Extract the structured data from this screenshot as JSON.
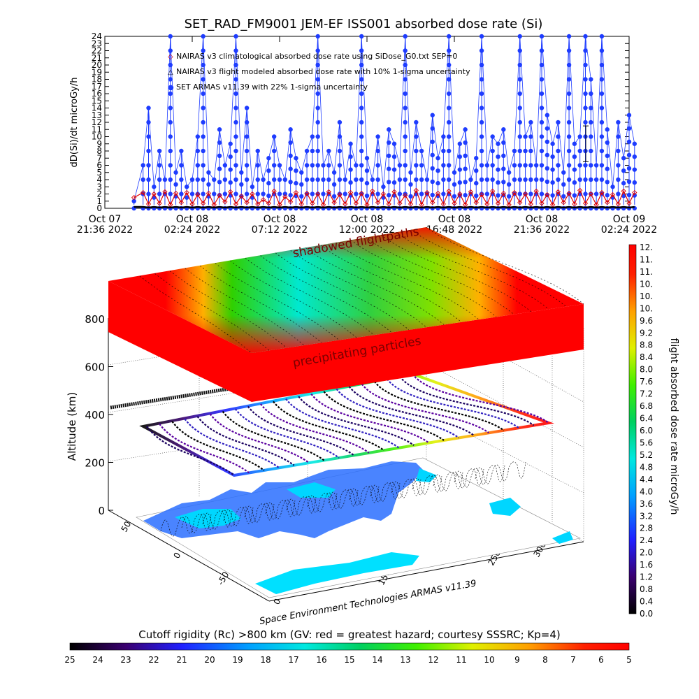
{
  "title": "SET_RAD_FM9001  JEM-EF ISS001 absorbed dose rate (Si)",
  "time_plot": {
    "ylabel": "dD(Si)/dt microGy/h",
    "y_ticks": [
      "0",
      "1",
      "2",
      "3",
      "4",
      "5",
      "6",
      "7",
      "8",
      "9",
      "10",
      "11",
      "12",
      "13",
      "14",
      "15",
      "16",
      "17",
      "18",
      "19",
      "20",
      "21",
      "22",
      "23",
      "24"
    ],
    "x_ticks": [
      {
        "line1": "Oct 07",
        "line2": "21:36  2022"
      },
      {
        "line1": "Oct 08",
        "line2": "02:24  2022"
      },
      {
        "line1": "Oct 08",
        "line2": "07:12  2022"
      },
      {
        "line1": "Oct 08",
        "line2": "12:00  2022"
      },
      {
        "line1": "Oct 08",
        "line2": "16:48  2022"
      },
      {
        "line1": "Oct 08",
        "line2": "21:36  2022"
      },
      {
        "line1": "Oct 09",
        "line2": "02:24  2022"
      }
    ],
    "legend": [
      {
        "symbol": "◇",
        "color": "#e00000",
        "text": "NAIRAS v3 climatological absorbed dose rate using SiDose_G0.txt SEP=0"
      },
      {
        "symbol": "△",
        "color": "#000000",
        "text": "NAIRAS v3 flight modeled absorbed dose rate with 10% 1-sigma uncertainty"
      },
      {
        "symbol": "●",
        "color": "#1e3cff",
        "text": "SET ARMAS v11.39 with 22% 1-sigma uncertainty"
      }
    ]
  },
  "chart_data": [
    {
      "type": "line",
      "title": "SET_RAD_FM9001  JEM-EF ISS001 absorbed dose rate (Si)",
      "xlabel": "",
      "ylabel": "dD(Si)/dt microGy/h",
      "xlim": [
        "2022-10-07 21:36",
        "2022-10-09 02:24"
      ],
      "ylim": [
        0,
        24
      ],
      "grid": false,
      "legend_position": "top-left",
      "x_hours": [
        1.6,
        2.1,
        2.4,
        2.7,
        3.0,
        3.3,
        3.6,
        3.9,
        4.2,
        4.5,
        4.8,
        5.1,
        5.4,
        5.7,
        6.0,
        6.3,
        6.6,
        6.9,
        7.2,
        7.5,
        7.8,
        8.1,
        8.4,
        8.7,
        9.0,
        9.3,
        9.6,
        9.9,
        10.2,
        10.5,
        10.8,
        11.1,
        11.4,
        11.7,
        12.0,
        12.3,
        12.6,
        12.9,
        13.2,
        13.5,
        13.8,
        14.1,
        14.4,
        14.7,
        15.0,
        15.3,
        15.6,
        15.9,
        16.2,
        16.5,
        16.8,
        17.1,
        17.4,
        17.7,
        18.0,
        18.3,
        18.6,
        18.9,
        19.2,
        19.5,
        19.8,
        20.1,
        20.4,
        20.7,
        21.0,
        21.3,
        21.6,
        21.9,
        22.2,
        22.5,
        22.8,
        23.1,
        23.4,
        23.7,
        24.0,
        24.3,
        24.6,
        24.9,
        25.2,
        25.5,
        25.8,
        26.1,
        26.4,
        26.7,
        27.0,
        27.3,
        27.6,
        27.9,
        28.2,
        28.5,
        28.8,
        29.1
      ],
      "series": [
        {
          "name": "SET ARMAS v11.39 with 22% 1-sigma uncertainty",
          "color": "#1e3cff",
          "values": [
            1,
            6,
            14,
            3,
            8,
            4,
            24,
            5,
            8,
            3,
            4,
            10,
            24,
            5,
            4,
            11,
            6,
            9,
            24,
            5,
            14,
            3,
            8,
            4,
            7,
            10,
            6,
            4,
            11,
            7,
            5,
            8,
            10,
            24,
            6,
            8,
            5,
            12,
            4,
            9,
            6,
            24,
            7,
            4,
            10,
            3,
            11,
            9,
            6,
            24,
            5,
            12,
            8,
            4,
            13,
            7,
            10,
            24,
            5,
            9,
            11,
            4,
            7,
            24,
            6,
            10,
            9,
            11,
            5,
            8,
            24,
            10,
            12,
            6,
            24,
            13,
            9,
            12,
            5,
            24,
            9,
            10,
            24,
            18,
            6,
            24,
            11,
            3,
            12,
            7,
            13,
            9
          ]
        },
        {
          "name": "NAIRAS v3 climatological absorbed dose rate using SiDose_G0.txt SEP=0",
          "color": "#e00000",
          "values": [
            1.5,
            2.2,
            0.6,
            2.0,
            0.7,
            2.3,
            0.5,
            2.1,
            0.8,
            2.2,
            0.6,
            1.9,
            0.7,
            2.1,
            0.5,
            1.8,
            0.9,
            2.3,
            0.6,
            1.7,
            0.8,
            2.0,
            0.6,
            1.2,
            0.7,
            2.4,
            0.5,
            1.6,
            0.9,
            2.2,
            0.6,
            2.1,
            0.7,
            2.0,
            0.5,
            2.3,
            0.8,
            1.9,
            0.6,
            2.2,
            0.7,
            2.1,
            0.5,
            2.4,
            0.8,
            2.0,
            0.6,
            2.3,
            0.7,
            1.8,
            0.6,
            2.5,
            0.5,
            2.2,
            0.8,
            2.1,
            0.6,
            2.4,
            0.7,
            2.0,
            0.5,
            2.3,
            0.8,
            1.9,
            0.6,
            2.4,
            0.7,
            2.1,
            0.5,
            2.2,
            0.8,
            2.0,
            0.6,
            2.4,
            0.7,
            1.9,
            0.5,
            2.3,
            0.8,
            2.1,
            0.6,
            2.5,
            0.7,
            2.0,
            0.5,
            2.2,
            0.8,
            1.9,
            0.6,
            2.4,
            0.7,
            2.2
          ]
        },
        {
          "name": "NAIRAS v3 flight modeled absorbed dose rate with 10% 1-sigma uncertainty",
          "color": "#000000",
          "values": [
            0.2,
            0.2,
            0.1,
            0.2,
            0.1,
            0.2,
            0.1,
            0.2,
            0.1,
            0.2,
            0.1,
            0.2,
            0.1,
            0.2,
            0.1,
            0.2,
            0.1,
            0.2,
            0.1,
            0.2,
            0.1,
            0.2,
            0.1,
            0.2,
            0.1,
            0.2,
            0.1,
            0.2,
            0.1,
            0.2,
            0.1,
            0.2,
            0.1,
            0.2,
            0.1,
            0.2,
            0.1,
            0.2,
            0.1,
            0.2,
            0.1,
            0.2,
            0.1,
            0.2,
            0.1,
            0.2,
            0.1,
            0.2,
            0.1,
            0.2,
            0.1,
            0.2,
            0.1,
            0.2,
            0.1,
            0.2,
            0.1,
            0.2,
            0.1,
            0.2,
            0.1,
            0.2,
            0.1,
            0.2,
            0.1,
            0.2,
            0.1,
            0.2,
            0.1,
            0.2,
            0.1,
            0.2,
            0.1,
            0.2,
            0.1,
            0.2,
            0.1,
            0.2,
            0.1,
            0.2,
            0.1,
            0.2,
            0.1,
            0.2,
            0.1,
            0.2,
            0.1,
            0.2,
            0.1,
            0.2,
            0.1,
            0.2
          ]
        }
      ]
    },
    {
      "type": "scatter",
      "title": "",
      "zlabel": "Altitude (km)",
      "z_ticks": [
        "0",
        "200",
        "400",
        "600",
        "800"
      ],
      "lat_ticks": [
        "-50",
        "0",
        "50"
      ],
      "lon_ticks": [
        "0",
        "150",
        "250",
        "300"
      ],
      "surface_labels": [
        "shadowed flightpaths",
        "precipitating particles"
      ],
      "colorbar": {
        "label": "flight absorbed dose rate microGy/h",
        "range": [
          0.0,
          12.0
        ],
        "ticks": [
          "12.",
          "11.",
          "11.",
          "10.",
          "10.",
          "10.",
          "9.6",
          "9.2",
          "8.8",
          "8.4",
          "8.0",
          "7.6",
          "7.2",
          "6.8",
          "6.4",
          "6.0",
          "5.6",
          "5.2",
          "4.8",
          "4.4",
          "4.0",
          "3.6",
          "3.2",
          "2.8",
          "2.4",
          "2.0",
          "1.6",
          "1.2",
          "0.8",
          "0.4",
          "0.0"
        ]
      },
      "caption": "Space Environment Technologies ARMAS v11.39"
    },
    {
      "type": "heatmap",
      "title": "Cutoff rigidity (Rc) >800 km (GV: red = greatest hazard; courtesy SSSRC; Kp=4)",
      "colorbar_ticks": [
        "25",
        "24",
        "23",
        "22",
        "21",
        "20",
        "19",
        "18",
        "17",
        "16",
        "15",
        "14",
        "13",
        "12",
        "11",
        "10",
        "9",
        "8",
        "7",
        "6",
        "5"
      ],
      "range": [
        25,
        5
      ]
    }
  ]
}
